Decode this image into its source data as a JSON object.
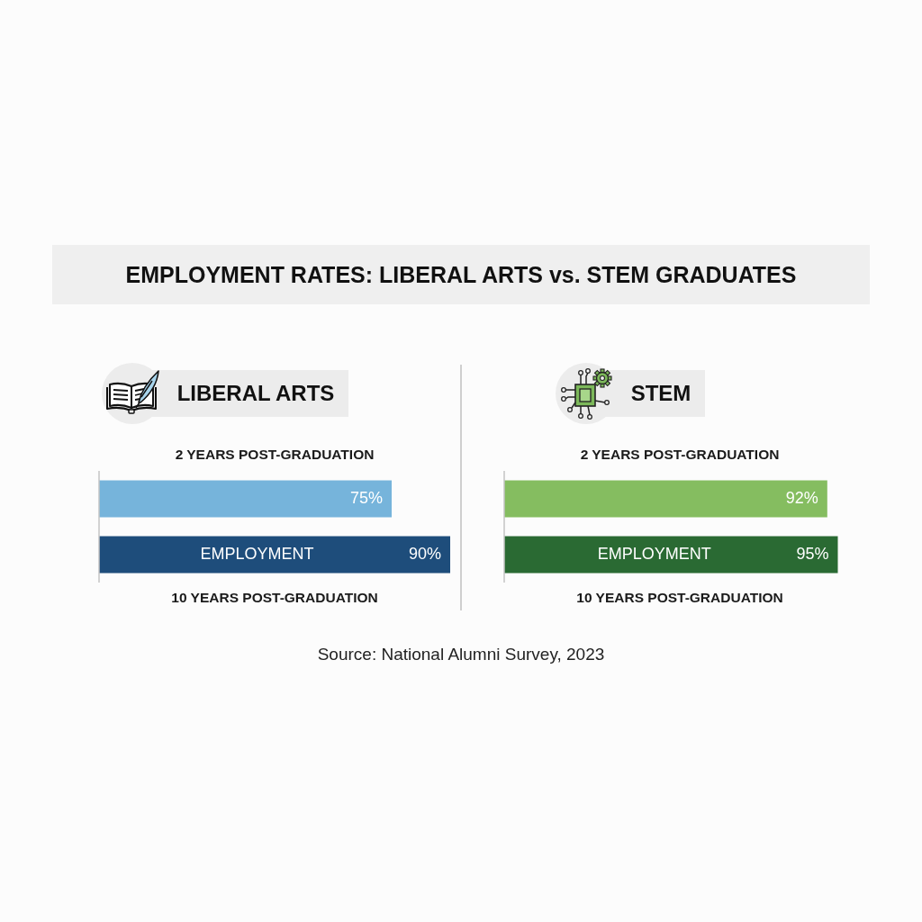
{
  "chart_data": [
    {
      "type": "other",
      "title": "EMPLOYMENT RATES: LIBERAL ARTS vs. STEM GRADUATES",
      "annotations": [
        "Source: National Alumni Survey, 2023"
      ]
    },
    {
      "type": "bar",
      "orientation": "horizontal",
      "title": "LIBERAL ARTS",
      "categories": [
        "2 YEARS POST-GRADUATION",
        "10 YEARS POST-GRADUATION"
      ],
      "values": [
        75,
        90
      ],
      "colors": [
        "#76b4db",
        "#1e4d7b"
      ],
      "value_labels": [
        "75%",
        "90%"
      ],
      "tick_labels": "y",
      "annotations": [
        "EMPLOYMENT"
      ]
    },
    {
      "type": "bar",
      "orientation": "horizontal",
      "title": "STEM",
      "categories": [
        "2 YEARS POST-GRADUATION",
        "10 YEARS POST-GRADUATION"
      ],
      "values": [
        92,
        95
      ],
      "colors": [
        "#85bd60",
        "#2a6a33"
      ],
      "value_labels": [
        "92%",
        "95%"
      ],
      "tick_labels": "y",
      "annotations": [
        "EMPLOYMENT"
      ]
    }
  ]
}
